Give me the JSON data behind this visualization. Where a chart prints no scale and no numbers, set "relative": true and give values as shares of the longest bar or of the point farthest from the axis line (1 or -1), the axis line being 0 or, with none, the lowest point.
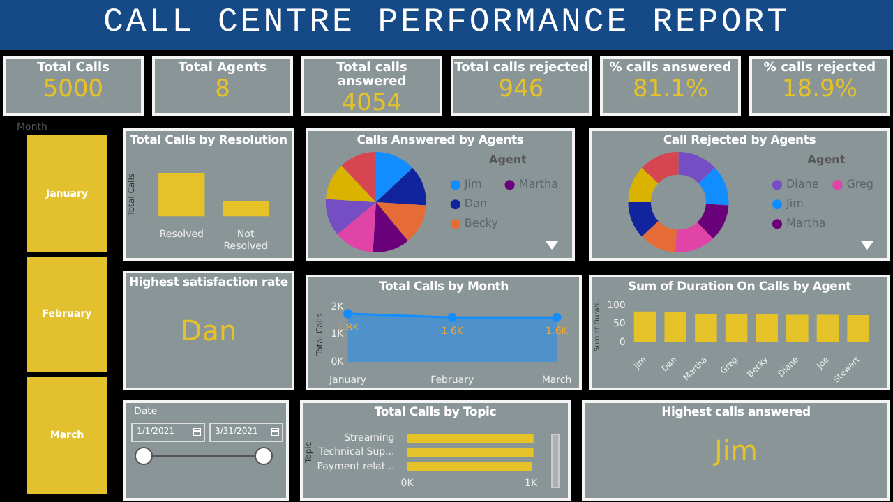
{
  "chart_data": [
    {
      "type": "other",
      "title": "CALL CENTRE PERFORMANCE REPORT",
      "annotations": [
        "Total Calls",
        "5000",
        "Total Agents",
        "8",
        "Total calls answered",
        "4054",
        "Total calls rejected",
        "946",
        "% calls answered",
        "81.1%",
        "% calls rejected",
        "18.9%"
      ]
    },
    {
      "type": "other",
      "title": "Month",
      "annotations": [
        "January",
        "February",
        "March"
      ]
    },
    {
      "type": "bar",
      "title": "Total Calls by Resolution",
      "ylabel": "Total Calls",
      "categories": [
        "Resolved",
        "Not Resolved"
      ],
      "values": [
        1,
        0.36
      ],
      "color": "#e6c229",
      "relative": true
    },
    {
      "type": "pie",
      "title": "Calls Answered by Agents",
      "legend_title": "Agent",
      "legend": "right",
      "categories": [
        "Jim",
        "Dan",
        "Becky",
        "Martha",
        null,
        null,
        null,
        null
      ],
      "values": [
        13,
        13,
        13,
        12,
        13,
        12,
        12,
        12
      ],
      "colors": [
        "#118dff",
        "#12239e",
        "#e66c37",
        "#6b007b",
        "#e044a7",
        "#744ec2",
        "#d9b300",
        "#d64550"
      ]
    },
    {
      "type": "donut",
      "title": "Call Rejected by Agents",
      "legend_title": "Agent",
      "legend": "right",
      "categories": [
        "Diane",
        "Jim",
        "Martha",
        "Greg",
        null,
        null,
        null,
        null
      ],
      "values": [
        13,
        13,
        12,
        13,
        12,
        12,
        12,
        13
      ],
      "colors": [
        "#744ec2",
        "#118dff",
        "#6b007b",
        "#e044a7",
        "#e66c37",
        "#12239e",
        "#d9b300",
        "#d64550"
      ]
    },
    {
      "type": "other",
      "title": "Highest satisfaction rate",
      "annotations": [
        "Dan"
      ]
    },
    {
      "type": "area",
      "title": "Total Calls by Month",
      "ylabel": "Total Calls",
      "categories": [
        "January",
        "February",
        "March"
      ],
      "values": [
        1760,
        1620,
        1620
      ],
      "value_labels": [
        "1.8K",
        "1.6K",
        "1.6K"
      ],
      "color": "#118dff",
      "marker": "circle",
      "ylim": [
        0,
        2000
      ],
      "yticks": [
        {
          "value": 0,
          "label": "0K"
        },
        {
          "value": 1000,
          "label": "1K"
        },
        {
          "value": 2000,
          "label": "2K"
        }
      ]
    },
    {
      "type": "bar",
      "title": "Sum of Duration On Calls by Agent",
      "ylabel": "Sum of Durati...",
      "categories": [
        "Jim",
        "Dan",
        "Martha",
        "Greg",
        "Becky",
        "Diane",
        "Joe",
        "Stewart"
      ],
      "values": [
        84,
        82,
        78,
        77,
        77,
        75,
        75,
        74
      ],
      "color": "#e6c229",
      "ylim": [
        0,
        100
      ],
      "yticks": [
        0,
        50,
        100
      ]
    },
    {
      "type": "other",
      "title": "Date",
      "annotations": [
        "1/1/2021",
        "3/31/2021"
      ]
    },
    {
      "type": "bar",
      "orientation": "horizontal",
      "title": "Total Calls by Topic",
      "ylabel": "Topic",
      "categories": [
        "Streaming",
        "Technical Sup...",
        "Payment relat..."
      ],
      "values": [
        1020,
        1020,
        1010
      ],
      "color": "#e6c229",
      "xlim": [
        0,
        1050
      ],
      "xticks": [
        {
          "value": 0,
          "label": "0K"
        },
        {
          "value": 1000,
          "label": "1K"
        }
      ]
    },
    {
      "type": "other",
      "title": "Highest calls answered",
      "annotations": [
        "Jim"
      ]
    }
  ]
}
